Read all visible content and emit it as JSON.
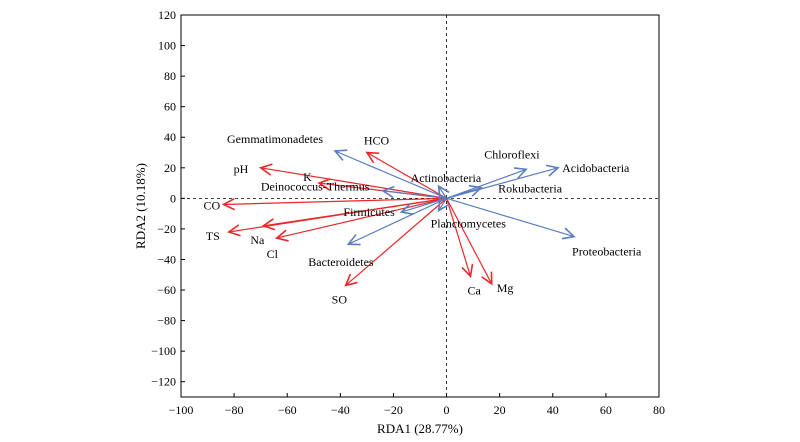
{
  "chart_data": {
    "type": "biplot",
    "xlabel": "RDA1 (28.77%)",
    "ylabel": "RDA2 (10.18%)",
    "xlim": [
      -100,
      80
    ],
    "ylim": [
      -130,
      120
    ],
    "xticks": [
      -100,
      -80,
      -60,
      -40,
      -20,
      0,
      20,
      40,
      60,
      80
    ],
    "yticks": [
      -120,
      -100,
      -80,
      -60,
      -40,
      -20,
      0,
      20,
      40,
      60,
      80,
      100,
      120
    ],
    "x_tick_labels": [
      "−100",
      "−80",
      "−60",
      "−40",
      "−20",
      "0",
      "20",
      "40",
      "60",
      "80"
    ],
    "y_tick_labels": [
      "−120",
      "−100",
      "−80",
      "−60",
      "−40",
      "−20",
      "0",
      "20",
      "40",
      "60",
      "80",
      "100",
      "120"
    ],
    "origin_lines": "dashed",
    "colors": {
      "environment": "#e8282b",
      "phyla": "#5a7ec0"
    },
    "series": [
      {
        "group": "environment",
        "vectors": [
          {
            "label": "HCO",
            "x": -30,
            "y": 30
          },
          {
            "label": "pH",
            "x": -70,
            "y": 20
          },
          {
            "label": "K",
            "x": -48,
            "y": 10
          },
          {
            "label": "CO",
            "x": -84,
            "y": -4
          },
          {
            "label": "TS",
            "x": -82,
            "y": -22
          },
          {
            "label": "Na",
            "x": -69,
            "y": -18
          },
          {
            "label": "Cl",
            "x": -64,
            "y": -26
          },
          {
            "label": "SO",
            "x": -38,
            "y": -57
          },
          {
            "label": "Ca",
            "x": 9,
            "y": -51
          },
          {
            "label": "Mg",
            "x": 17,
            "y": -56
          }
        ]
      },
      {
        "group": "phyla",
        "vectors": [
          {
            "label": "Gemmatimonadetes",
            "x": -42,
            "y": 31
          },
          {
            "label": "Deinococcus-Thermus",
            "x": -24,
            "y": 5
          },
          {
            "label": "Firmicutes",
            "x": -17,
            "y": -9
          },
          {
            "label": "Bacteroidetes",
            "x": -37,
            "y": -30
          },
          {
            "label": "Actinobacteria",
            "x": -3,
            "y": 8
          },
          {
            "label": "Planctomycetes",
            "x": -3,
            "y": -8
          },
          {
            "label": "Rokubacteria",
            "x": 13,
            "y": 7
          },
          {
            "label": "Chloroflexi",
            "x": 30,
            "y": 19
          },
          {
            "label": "Acidobacteria",
            "x": 42,
            "y": 20
          },
          {
            "label": "Proteobacteria",
            "x": 48,
            "y": -25
          }
        ]
      }
    ]
  }
}
